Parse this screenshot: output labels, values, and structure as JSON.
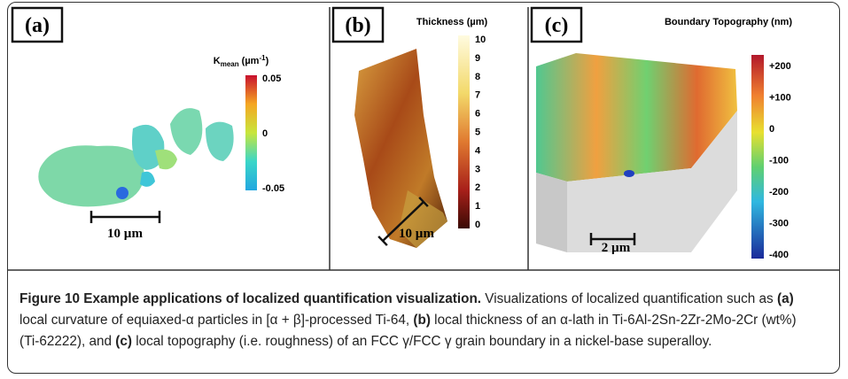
{
  "panels": [
    {
      "label": "(a)",
      "colorbar_title": {
        "symbol": "K",
        "subscript": "mean",
        "unit": " (µm",
        "superscript": "-1",
        "close": ")"
      },
      "ticks": [
        "0.05",
        "0",
        "-0.05"
      ],
      "scale_bar": "10 µm"
    },
    {
      "label": "(b)",
      "colorbar_title": "Thickness (µm)",
      "ticks": [
        "10",
        "9",
        "8",
        "7",
        "6",
        "5",
        "4",
        "3",
        "2",
        "1",
        "0"
      ],
      "scale_bar": "10 µm"
    },
    {
      "label": "(c)",
      "colorbar_title": "Boundary Topography (nm)",
      "ticks": [
        "+200",
        "+100",
        "0",
        "-100",
        "-200",
        "-300",
        "-400"
      ],
      "scale_bar": "2 µm"
    }
  ],
  "caption": {
    "parts": [
      {
        "text": "Figure 10 Example applications of localized quantification visualization.",
        "bold": true
      },
      {
        "text": " Visualizations of localized quantification such as ",
        "bold": false
      },
      {
        "text": "(a)",
        "bold": true
      },
      {
        "text": " local curvature of equiaxed-α particles in [α + β]-processed Ti-64, ",
        "bold": false
      },
      {
        "text": "(b)",
        "bold": true
      },
      {
        "text": " local thickness of an α-lath in Ti-6Al-2Sn-2Zr-2Mo-2Cr (wt%) (Ti-62222), and ",
        "bold": false
      },
      {
        "text": "(c)",
        "bold": true
      },
      {
        "text": " local topography (i.e. roughness) of an FCC γ/FCC γ grain boundary in a nickel-base superalloy.",
        "bold": false
      }
    ]
  }
}
